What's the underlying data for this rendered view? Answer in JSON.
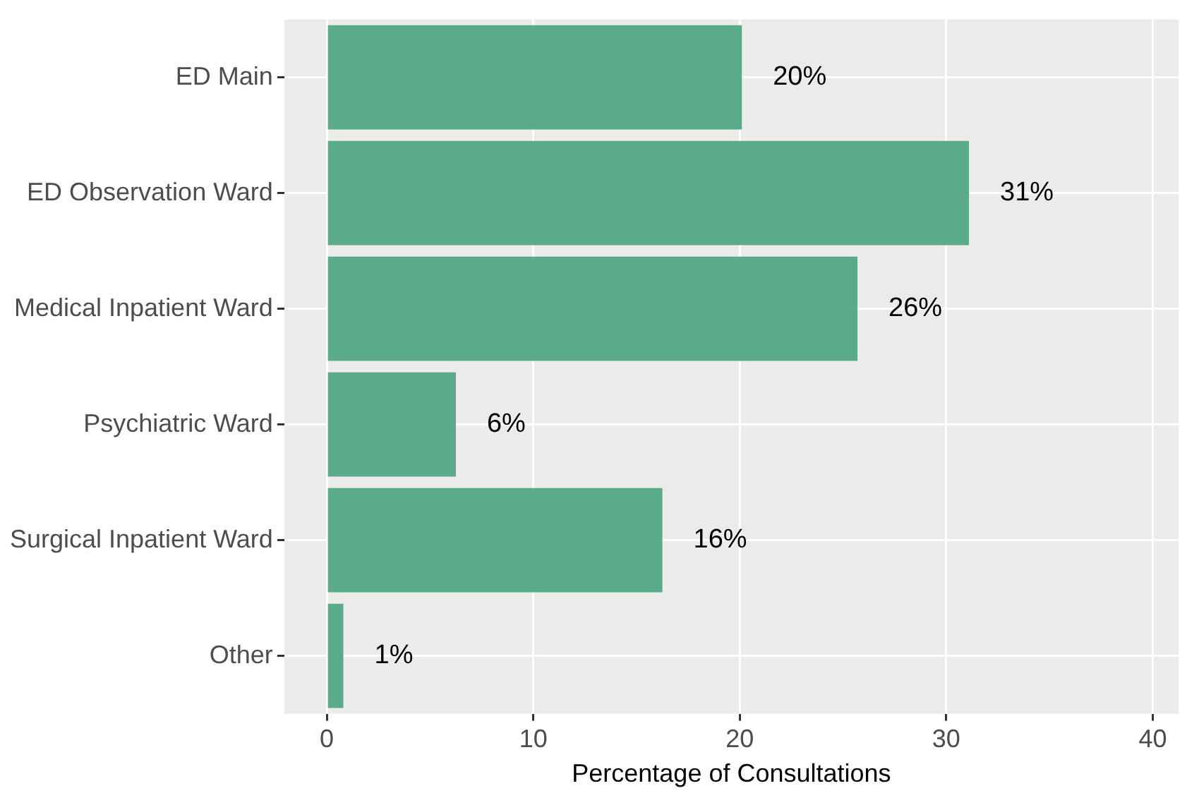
{
  "chart_data": {
    "type": "bar",
    "orientation": "horizontal",
    "xlabel": "Percentage of Consultations",
    "categories": [
      "ED Main",
      "ED Observation Ward",
      "Medical Inpatient Ward",
      "Psychiatric Ward",
      "Surgical Inpatient Ward",
      "Other"
    ],
    "values": [
      20.1,
      31.1,
      25.7,
      6.25,
      16.25,
      0.8
    ],
    "value_labels": [
      "20%",
      "31%",
      "26%",
      "6%",
      "16%",
      "1%"
    ],
    "color": "#5aab8a",
    "xlim": [
      -2.06,
      41.25
    ],
    "xticks": [
      0,
      10,
      20,
      30,
      40
    ],
    "grid": true,
    "legend": false
  }
}
